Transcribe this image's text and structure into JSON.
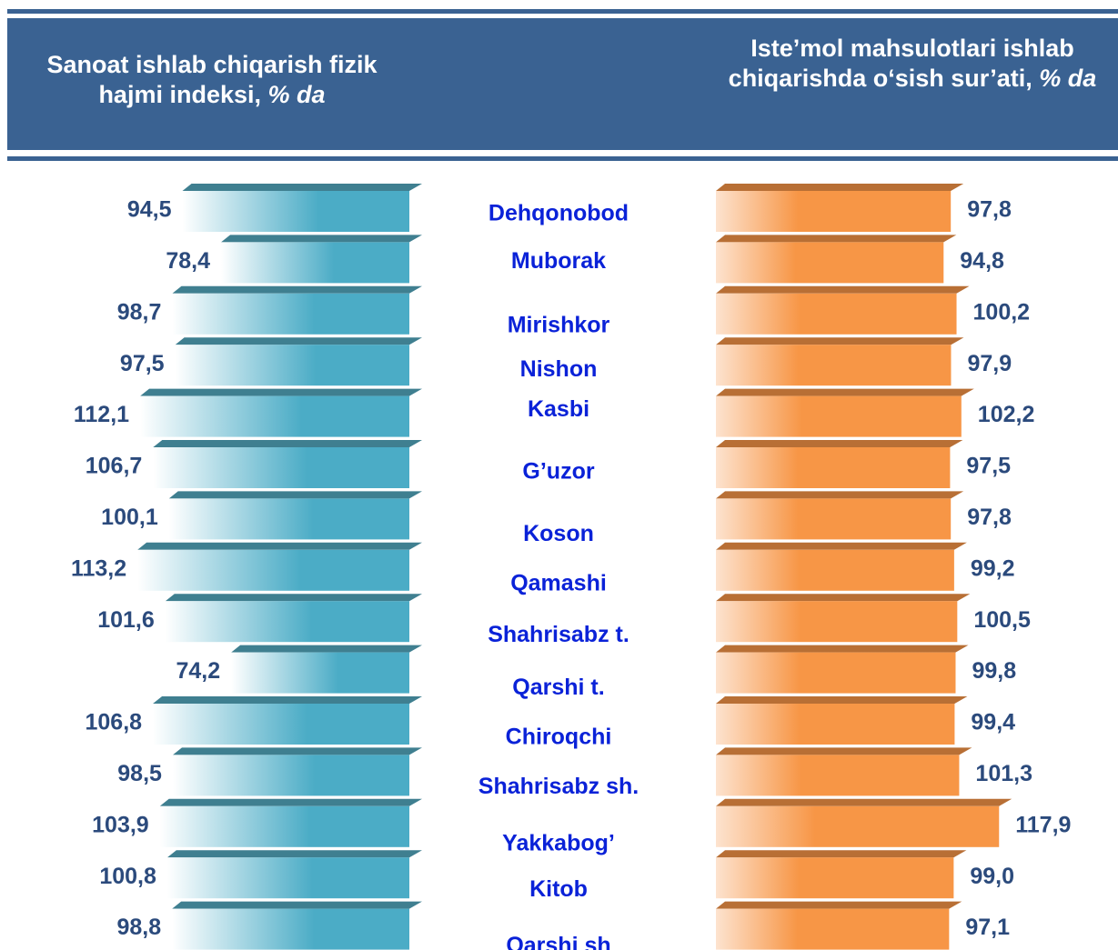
{
  "chart_data": {
    "type": "bar",
    "categories": [
      "Dehqonobod",
      "Muborak",
      "Mirishkor",
      "Nishon",
      "Kasbi",
      "G’uzor",
      "Koson",
      "Qamashi",
      "Shahrisabz t.",
      "Qarshi t.",
      "Chiroqchi",
      "Shahrisabz sh.",
      "Yakkabog’",
      "Kitob",
      "Qarshi  sh"
    ],
    "series": [
      {
        "name": "Sanoat ishlab chiqarish fizik hajmi indeksi,",
        "unit": "% da",
        "color": "#4bacc6",
        "values": [
          94.5,
          78.4,
          98.7,
          97.5,
          112.1,
          106.7,
          100.1,
          113.2,
          101.6,
          74.2,
          106.8,
          98.5,
          103.9,
          100.8,
          98.8
        ],
        "value_labels": [
          "94,5",
          "78,4",
          "98,7",
          "97,5",
          "112,1",
          "106,7",
          "100,1",
          "113,2",
          "101,6",
          "74,2",
          "106,8",
          "98,5",
          "103,9",
          "100,8",
          "98,8"
        ]
      },
      {
        "name": "Iste’mol mahsulotlari ishlab chiqarishda o‘sish sur’ati,",
        "unit": "% da",
        "color": "#f79646",
        "values": [
          97.8,
          94.8,
          100.2,
          97.9,
          102.2,
          97.5,
          97.8,
          99.2,
          100.5,
          99.8,
          99.4,
          101.3,
          117.9,
          99.0,
          97.1
        ],
        "value_labels": [
          "97,8",
          "94,8",
          "100,2",
          "97,9",
          "102,2",
          "97,5",
          "97,8",
          "99,2",
          "100,5",
          "99,8",
          "99,4",
          "101,3",
          "117,9",
          "99,0",
          "97,1"
        ]
      }
    ]
  }
}
